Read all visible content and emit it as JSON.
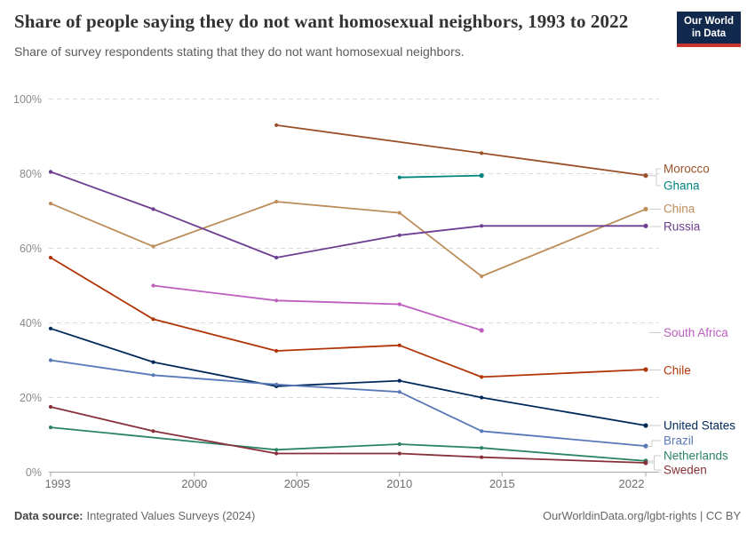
{
  "header": {
    "title": "Share of people saying they do not want homosexual neighbors, 1993 to 2022",
    "subtitle": "Share of survey respondents stating that they do not want homosexual neighbors.",
    "logo": {
      "line1": "Our World",
      "line2": "in Data",
      "bg_color": "#12294E",
      "accent_color": "#C9342E"
    }
  },
  "chart_data": {
    "type": "line",
    "title": "Share of people saying they do not want homosexual neighbors, 1993 to 2022",
    "xlabel": "",
    "ylabel": "",
    "xlim": [
      1993,
      2022
    ],
    "ylim": [
      0,
      100
    ],
    "grid": "horizontal-dashed",
    "legend_position": "right-edge-labels",
    "x_ticks": [
      1993,
      2000,
      2005,
      2010,
      2015,
      2022
    ],
    "x_tick_labels": [
      "1993",
      "2000",
      "2005",
      "2010",
      "2015",
      "2022"
    ],
    "y_ticks": [
      0,
      20,
      40,
      60,
      80,
      100
    ],
    "y_tick_labels": [
      "0%",
      "20%",
      "40%",
      "60%",
      "80%",
      "100%"
    ],
    "unit": "%",
    "series": [
      {
        "name": "Morocco",
        "color": "#9A5129",
        "points": [
          [
            2004,
            93
          ],
          [
            2014,
            85.5
          ],
          [
            2022,
            79.5
          ]
        ]
      },
      {
        "name": "Ghana",
        "color": "#00847E",
        "points": [
          [
            2010,
            79
          ],
          [
            2014,
            79.5
          ]
        ]
      },
      {
        "name": "China",
        "color": "#BC8E5A",
        "points": [
          [
            1993,
            72
          ],
          [
            1998,
            60.5
          ],
          [
            2004,
            72.5
          ],
          [
            2010,
            69.5
          ],
          [
            2014,
            52.5
          ],
          [
            2022,
            70.5
          ]
        ]
      },
      {
        "name": "Russia",
        "color": "#6D3E91",
        "points": [
          [
            1993,
            80.5
          ],
          [
            1998,
            70.5
          ],
          [
            2004,
            57.5
          ],
          [
            2010,
            63.5
          ],
          [
            2014,
            66
          ],
          [
            2022,
            66
          ]
        ]
      },
      {
        "name": "South Africa",
        "color": "#BC5FBF",
        "points": [
          [
            1998,
            50
          ],
          [
            2004,
            46
          ],
          [
            2010,
            45
          ],
          [
            2014,
            38
          ]
        ]
      },
      {
        "name": "Chile",
        "color": "#B13507",
        "points": [
          [
            1993,
            57.5
          ],
          [
            1998,
            41
          ],
          [
            2004,
            32.5
          ],
          [
            2010,
            34
          ],
          [
            2014,
            25.5
          ],
          [
            2022,
            27.5
          ]
        ]
      },
      {
        "name": "United States",
        "color": "#00295B",
        "points": [
          [
            1993,
            38.5
          ],
          [
            1998,
            29.5
          ],
          [
            2004,
            23
          ],
          [
            2010,
            24.5
          ],
          [
            2014,
            20
          ],
          [
            2022,
            12.5
          ]
        ]
      },
      {
        "name": "Brazil",
        "color": "#5878B8",
        "points": [
          [
            1993,
            30
          ],
          [
            1998,
            26
          ],
          [
            2004,
            23.5
          ],
          [
            2010,
            21.5
          ],
          [
            2014,
            11
          ],
          [
            2022,
            7
          ]
        ]
      },
      {
        "name": "Netherlands",
        "color": "#2C8465",
        "points": [
          [
            1993,
            12
          ],
          [
            2004,
            6
          ],
          [
            2010,
            7.5
          ],
          [
            2014,
            6.5
          ],
          [
            2022,
            3
          ]
        ]
      },
      {
        "name": "Sweden",
        "color": "#883039",
        "points": [
          [
            1993,
            17.5
          ],
          [
            1998,
            11
          ],
          [
            2004,
            5
          ],
          [
            2010,
            5
          ],
          [
            2014,
            4
          ],
          [
            2022,
            2.5
          ]
        ]
      }
    ]
  },
  "footer": {
    "source_label": "Data source:",
    "source_value": "Integrated Values Surveys (2024)",
    "credit": "OurWorldinData.org/lgbt-rights | CC BY"
  }
}
